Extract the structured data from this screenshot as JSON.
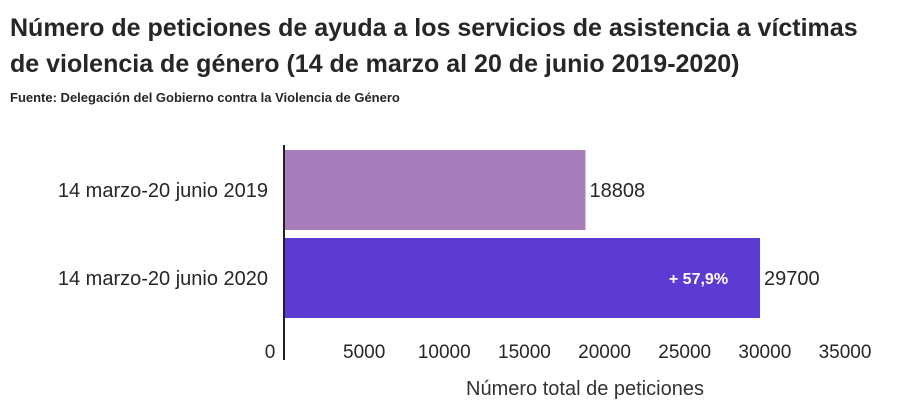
{
  "header": {
    "title": "Número de peticiones de ayuda a los servicios de asistencia a víctimas de violencia de género (14 de marzo al 20 de junio 2019-2020)",
    "source": "Fuente: Delegación del Gobierno contra la Violencia de Género"
  },
  "chart_data": {
    "type": "bar",
    "orientation": "horizontal",
    "title": "Número de peticiones de ayuda a los servicios de asistencia a víctimas de violencia de género (14 de marzo al 20 de junio 2019-2020)",
    "subtitle": "Fuente: Delegación del Gobierno contra la Violencia de Género",
    "categories": [
      "14 marzo-20 junio 2019",
      "14 marzo-20 junio 2020"
    ],
    "values": [
      18808,
      29700
    ],
    "value_labels": [
      "18808",
      "29700"
    ],
    "bar_colors": [
      "#a77dbc",
      "#5d3bd3"
    ],
    "annotation": {
      "category_index": 1,
      "text": "+ 57,9%"
    },
    "xlabel": "Número total de peticiones",
    "ylabel": "",
    "xlim": [
      0,
      35000
    ],
    "xticks": [
      0,
      5000,
      10000,
      15000,
      20000,
      25000,
      30000,
      35000
    ],
    "xtick_labels": [
      "0",
      "5000",
      "10000",
      "15000",
      "20000",
      "25000",
      "30000",
      "35000"
    ],
    "grid": false,
    "legend": "none"
  }
}
